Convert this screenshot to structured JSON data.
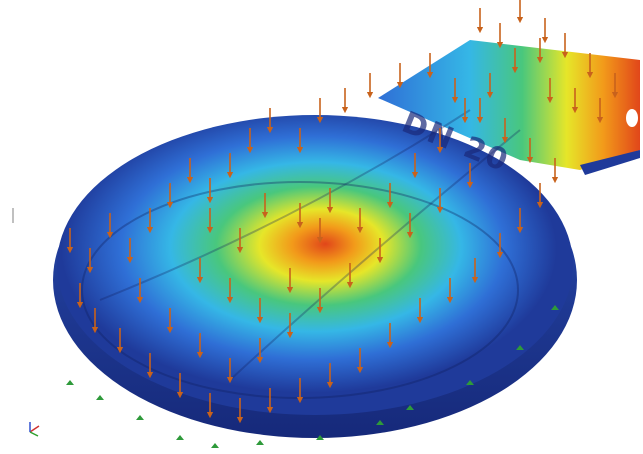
{
  "scene": {
    "background": "#ffffff",
    "embossed_text": "DN 20",
    "contour_colors": {
      "min": "#1f3a9a",
      "low": "#2f6fd6",
      "mid_low": "#35b7e6",
      "mid": "#49c77d",
      "mid_high": "#e6e629",
      "high": "#f29a1a",
      "max": "#e1461a"
    },
    "load_arrow_color": "#c8621c",
    "support_color": "#2e9a3a",
    "axis_triad": {
      "x_color": "#d03030",
      "y_color": "#30a030",
      "z_color": "#3050d0"
    },
    "views": {
      "load_arrows": "pressure-load-arrows",
      "supports": "fixed-support-markers"
    }
  }
}
